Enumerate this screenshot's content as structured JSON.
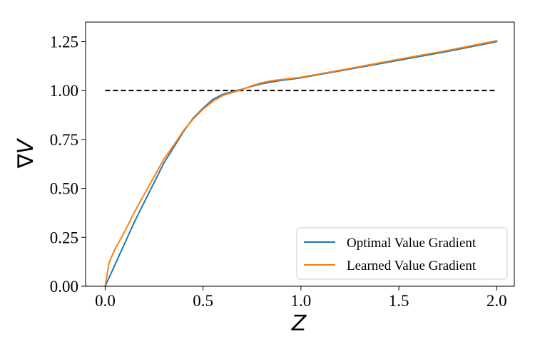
{
  "chart_data": {
    "type": "line",
    "title": "",
    "xlabel": "Z",
    "ylabel": "∇V",
    "xlim": [
      -0.1,
      2.09
    ],
    "ylim": [
      0.0,
      1.35
    ],
    "x_ticks": [
      0.0,
      0.5,
      1.0,
      1.5,
      2.0
    ],
    "x_tick_labels": [
      "0.0",
      "0.5",
      "1.0",
      "1.5",
      "2.0"
    ],
    "y_ticks": [
      0.0,
      0.25,
      0.5,
      0.75,
      1.0,
      1.25
    ],
    "y_tick_labels": [
      "0.00",
      "0.25",
      "0.50",
      "0.75",
      "1.00",
      "1.25"
    ],
    "grid": false,
    "legend_position": "lower-right",
    "series": [
      {
        "name": "Optimal Value Gradient",
        "color": "#1f77b4",
        "x": [
          0.0,
          0.05,
          0.1,
          0.15,
          0.2,
          0.25,
          0.3,
          0.35,
          0.4,
          0.45,
          0.5,
          0.55,
          0.6,
          0.65,
          0.7,
          0.75,
          0.8,
          0.85,
          0.9,
          0.95,
          1.0,
          1.25,
          1.5,
          1.75,
          2.0
        ],
        "y": [
          0.0,
          0.11,
          0.22,
          0.33,
          0.43,
          0.53,
          0.63,
          0.71,
          0.79,
          0.86,
          0.91,
          0.955,
          0.98,
          0.995,
          1.007,
          1.022,
          1.035,
          1.044,
          1.052,
          1.058,
          1.065,
          1.11,
          1.155,
          1.2,
          1.25
        ]
      },
      {
        "name": "Learned Value Gradient",
        "color": "#ff7f0e",
        "x": [
          0.0,
          0.02,
          0.05,
          0.1,
          0.15,
          0.2,
          0.25,
          0.3,
          0.35,
          0.4,
          0.45,
          0.5,
          0.55,
          0.6,
          0.65,
          0.7,
          0.75,
          0.8,
          0.85,
          0.9,
          0.95,
          1.0,
          1.25,
          1.5,
          1.75,
          2.0
        ],
        "y": [
          0.0,
          0.12,
          0.19,
          0.28,
          0.38,
          0.47,
          0.56,
          0.65,
          0.72,
          0.795,
          0.855,
          0.905,
          0.945,
          0.975,
          0.99,
          1.005,
          1.025,
          1.04,
          1.05,
          1.056,
          1.062,
          1.068,
          1.113,
          1.16,
          1.205,
          1.255
        ]
      }
    ],
    "reference_line": {
      "y": 1.0,
      "x_range": [
        0.0,
        2.0
      ],
      "style": "dashed",
      "color": "#000000"
    }
  }
}
